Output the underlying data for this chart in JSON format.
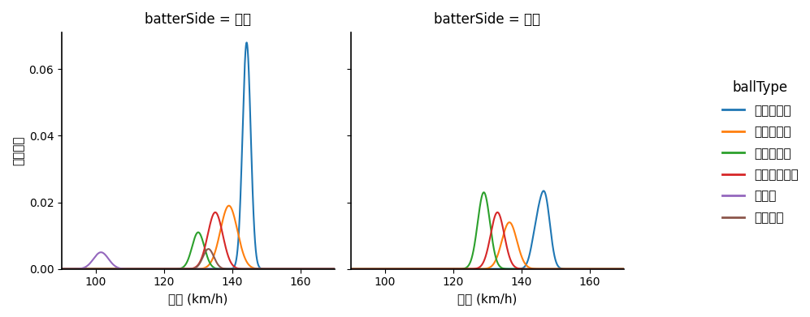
{
  "title_right": "batterSide = 右打",
  "title_left": "batterSide = 左打",
  "ylabel": "確率密度",
  "xlabel": "球速 (km/h)",
  "xlim": [
    90,
    170
  ],
  "ylim": [
    0,
    0.071
  ],
  "yticks": [
    0.0,
    0.02,
    0.04,
    0.06
  ],
  "xticks": [
    100,
    120,
    140,
    160
  ],
  "legend_title": "ballType",
  "ball_types": [
    "ストレート",
    "ツーシーム",
    "スライダー",
    "カットボール",
    "カーブ",
    "フォーク"
  ],
  "colors": [
    "#1f77b4",
    "#ff7f0e",
    "#2ca02c",
    "#d62728",
    "#9467bd",
    "#8c564b"
  ],
  "right_curves": [
    {
      "mean": 144.2,
      "std": 1.2,
      "peak": 0.068,
      "color_idx": 0
    },
    {
      "mean": 139.0,
      "std": 2.5,
      "peak": 0.019,
      "color_idx": 1
    },
    {
      "mean": 130.0,
      "std": 1.8,
      "peak": 0.011,
      "color_idx": 2
    },
    {
      "mean": 135.0,
      "std": 2.2,
      "peak": 0.017,
      "color_idx": 3
    },
    {
      "mean": 101.5,
      "std": 2.2,
      "peak": 0.005,
      "color_idx": 4
    },
    {
      "mean": 133.0,
      "std": 1.6,
      "peak": 0.006,
      "color_idx": 5
    }
  ],
  "left_curves": [
    {
      "mean": 144.5,
      "std": 1.5,
      "peak": 0.011,
      "color_idx": 0,
      "bimodal": true,
      "mean2": 147.0,
      "std2": 1.5,
      "peak2": 0.02
    },
    {
      "mean": 136.5,
      "std": 2.2,
      "peak": 0.014,
      "color_idx": 1
    },
    {
      "mean": 129.0,
      "std": 1.8,
      "peak": 0.023,
      "color_idx": 2
    },
    {
      "mean": 133.0,
      "std": 2.0,
      "peak": 0.017,
      "color_idx": 3
    }
  ],
  "background_color": "#ffffff",
  "figsize": [
    9.97,
    3.91
  ],
  "dpi": 100
}
